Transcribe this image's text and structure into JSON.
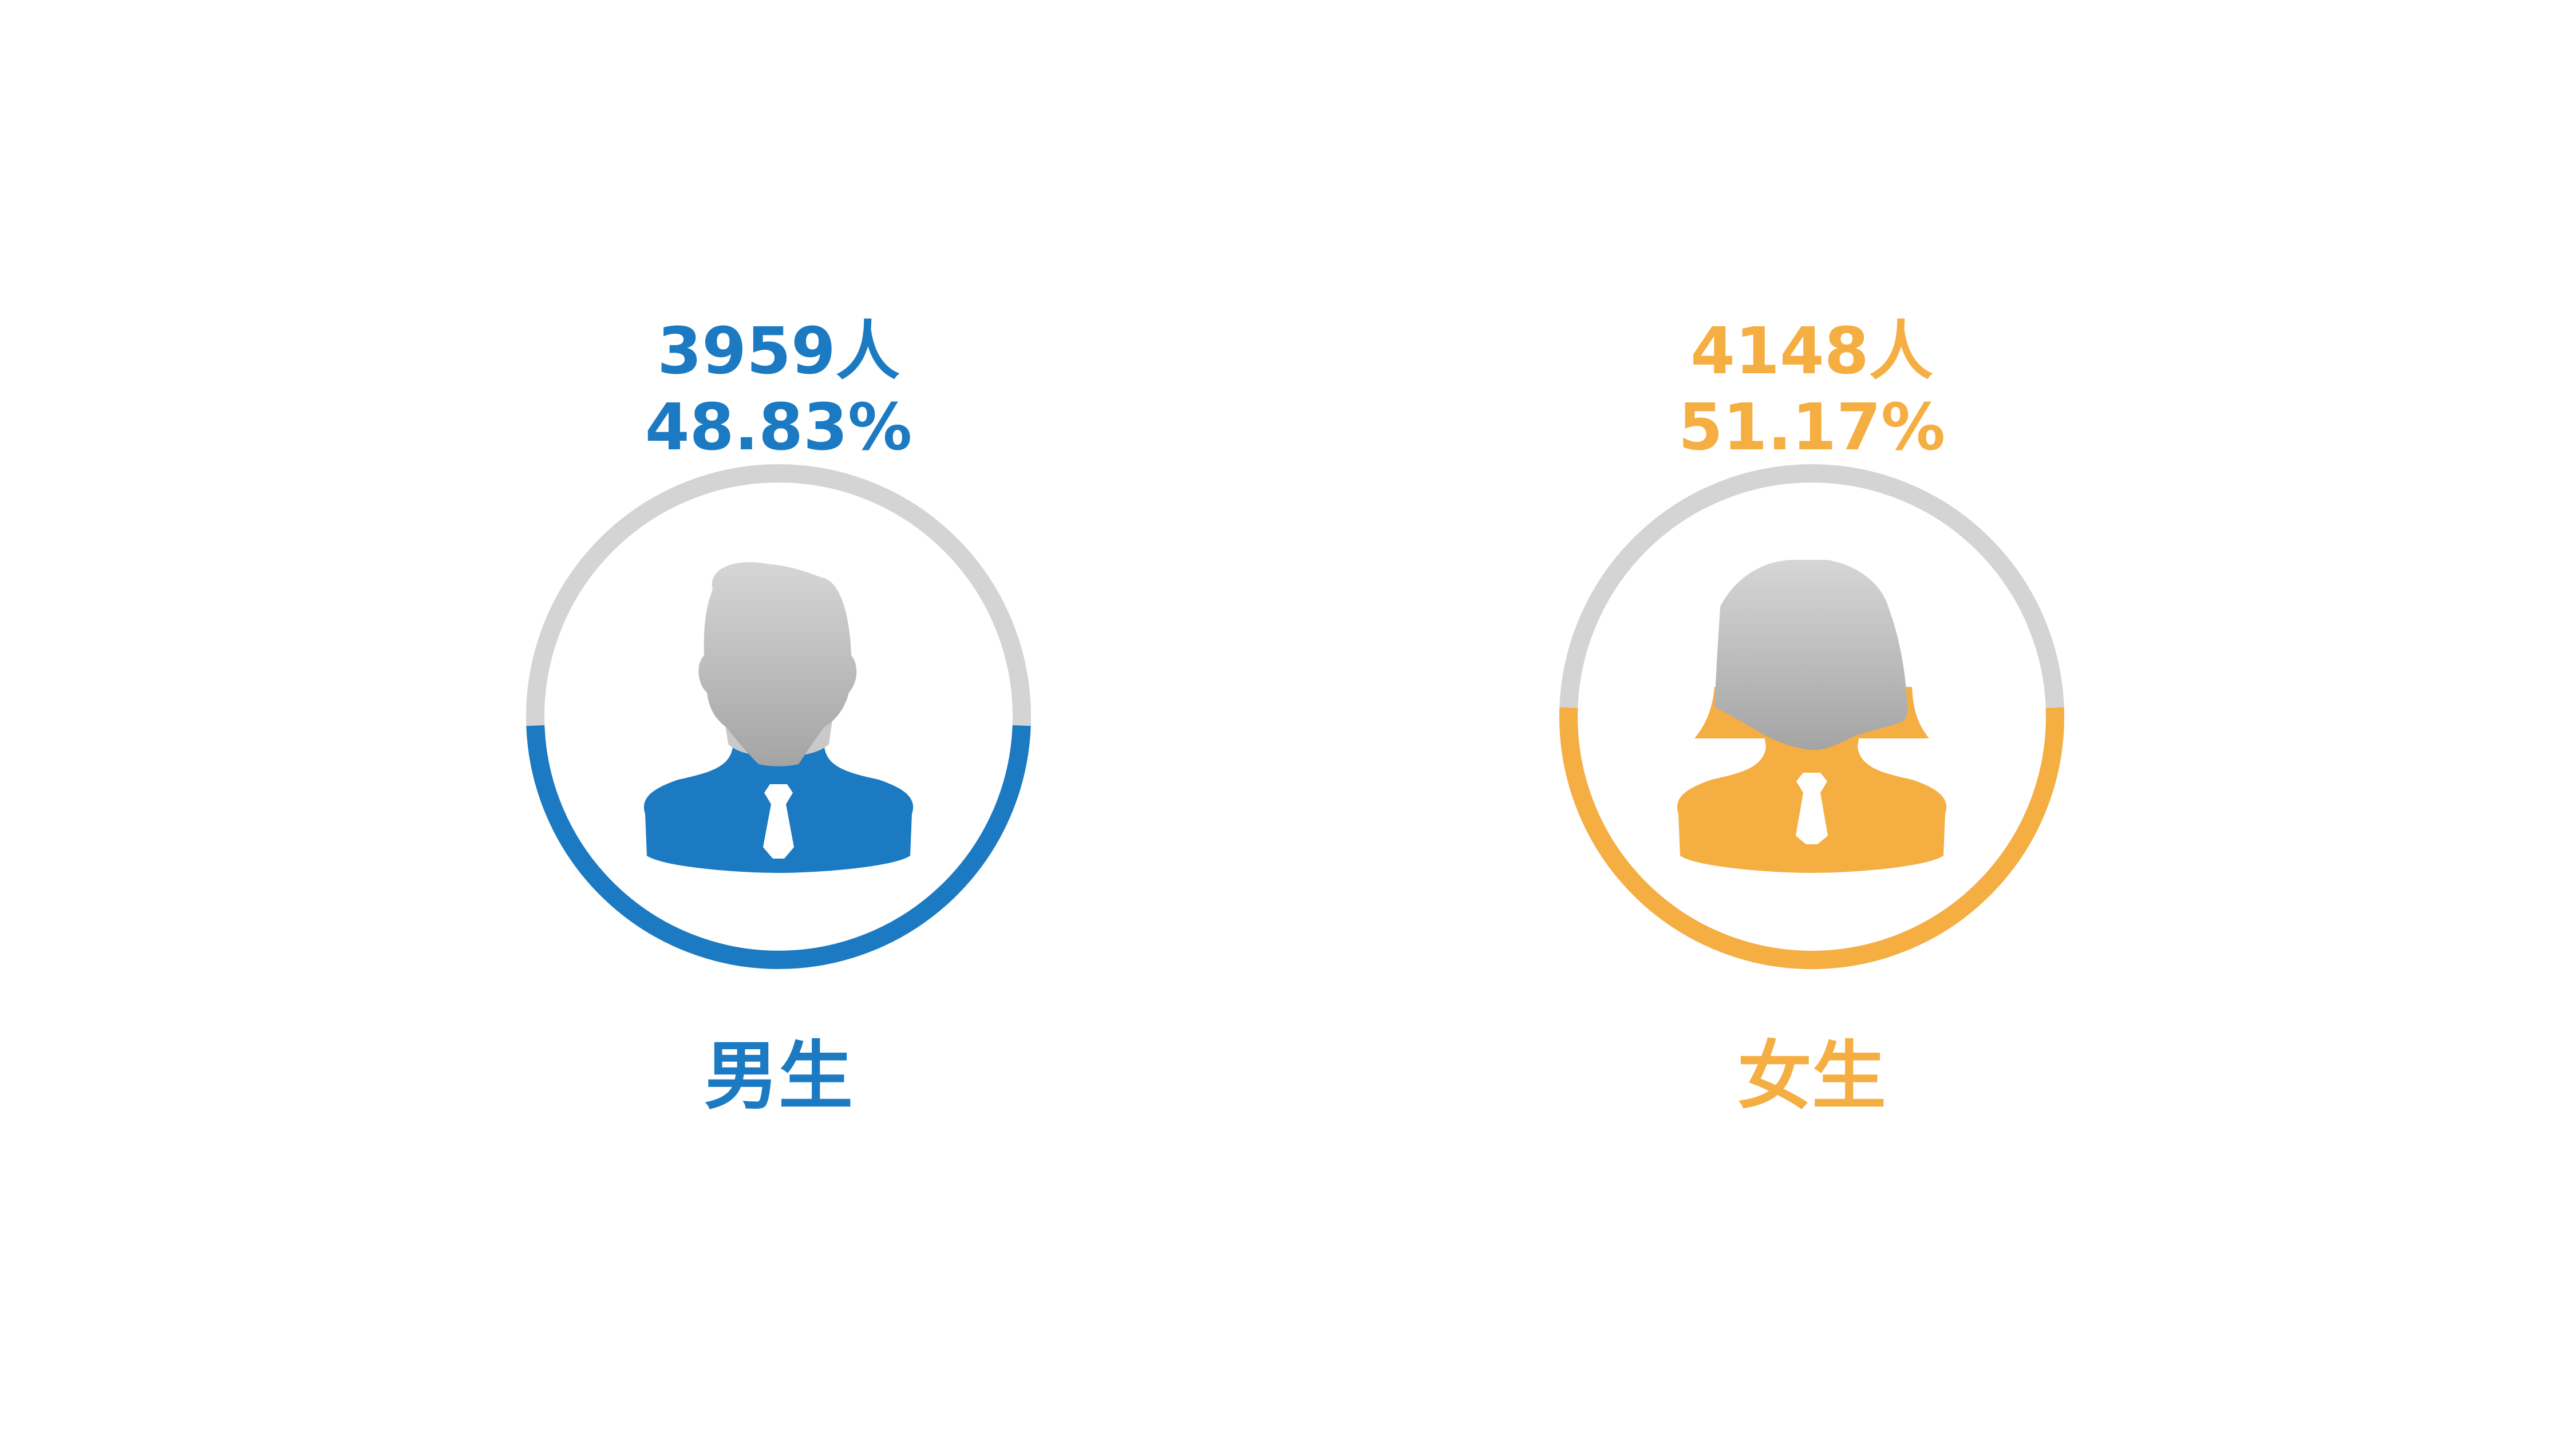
{
  "chart_data": {
    "type": "pie",
    "series": [
      {
        "name": "男生",
        "count_label": "3959人",
        "percent_label": "48.83%",
        "count": 3959,
        "percent": 48.83,
        "color": "#1b7ac2",
        "icon": "male-person-icon"
      },
      {
        "name": "女生",
        "count_label": "4148人",
        "percent_label": "51.17%",
        "count": 4148,
        "percent": 51.17,
        "color": "#f5ae42",
        "icon": "female-person-icon"
      }
    ],
    "track_color": "#d4d4d4",
    "legend": "none",
    "grid": false
  }
}
